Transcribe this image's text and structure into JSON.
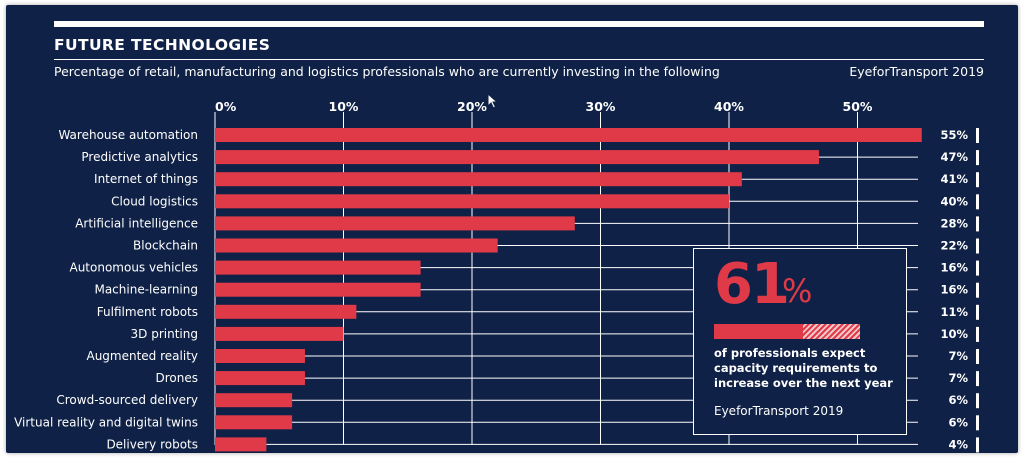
{
  "header": {
    "title": "FUTURE TECHNOLOGIES",
    "subtitle": "Percentage of retail, manufacturing and logistics professionals who are currently investing in the following",
    "source": "EyeforTransport 2019"
  },
  "colors": {
    "background": "#0f2146",
    "bar": "#e03a48",
    "text": "#ffffff"
  },
  "callout": {
    "number": "61",
    "percent_sign": "%",
    "value": 61,
    "text": "of professionals expect capacity requirements to increase over the next year",
    "source": "EyeforTransport 2019"
  },
  "chart_data": {
    "type": "bar",
    "orientation": "horizontal",
    "xlim": [
      0,
      55
    ],
    "x_ticks": [
      0,
      10,
      20,
      30,
      40,
      50
    ],
    "x_tick_labels": [
      "0%",
      "10%",
      "20%",
      "30%",
      "40%",
      "50%"
    ],
    "grid": true,
    "categories": [
      "Warehouse automation",
      "Predictive analytics",
      "Internet of things",
      "Cloud logistics",
      "Artificial intelligence",
      "Blockchain",
      "Autonomous vehicles",
      "Machine-learning",
      "Fulfilment robots",
      "3D printing",
      "Augmented reality",
      "Drones",
      "Crowd-sourced delivery",
      "Virtual reality and digital twins",
      "Delivery robots"
    ],
    "values": [
      55,
      47,
      41,
      40,
      28,
      22,
      16,
      16,
      11,
      10,
      7,
      7,
      6,
      6,
      4
    ],
    "value_labels": [
      "55%",
      "47%",
      "41%",
      "40%",
      "28%",
      "22%",
      "16%",
      "16%",
      "11%",
      "10%",
      "7%",
      "7%",
      "6%",
      "6%",
      "4%"
    ]
  }
}
